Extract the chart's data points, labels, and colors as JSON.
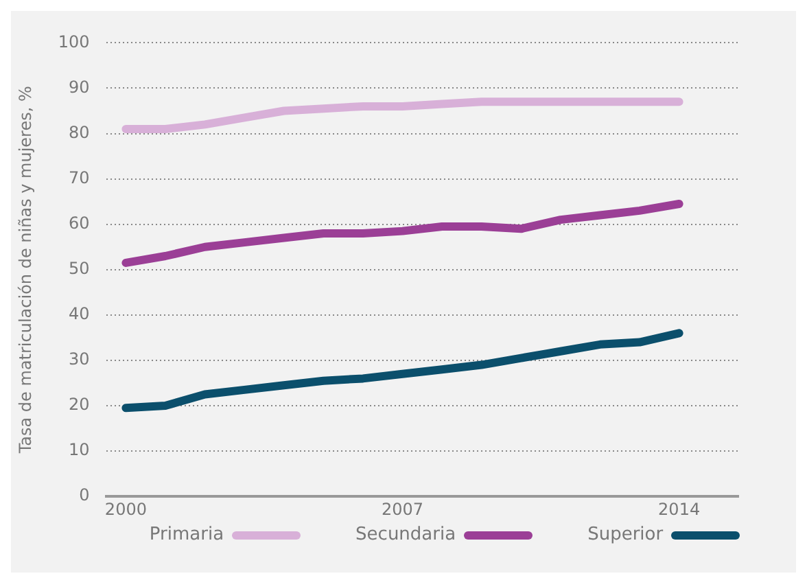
{
  "chart_data": {
    "type": "line",
    "ylabel": "Tasa de matriculación de niñas y mujeres, %",
    "x": [
      2000,
      2001,
      2002,
      2003,
      2004,
      2005,
      2006,
      2007,
      2008,
      2009,
      2010,
      2011,
      2012,
      2013,
      2014
    ],
    "series": [
      {
        "name": "Primaria",
        "color": "#d8b0d8",
        "values": [
          81,
          81,
          82,
          83.5,
          85,
          85.5,
          86,
          86,
          86.5,
          87,
          87,
          87,
          87,
          87,
          87
        ]
      },
      {
        "name": "Secundaria",
        "color": "#9b3f96",
        "values": [
          51.5,
          53,
          55,
          56,
          57,
          58,
          58,
          58.5,
          59.5,
          59.5,
          59,
          61,
          62,
          63,
          64.5
        ]
      },
      {
        "name": "Superior",
        "color": "#0b4f6c",
        "values": [
          19.5,
          20,
          22.5,
          23.5,
          24.5,
          25.5,
          26,
          27,
          28,
          29,
          30.5,
          32,
          33.5,
          34,
          36
        ]
      }
    ],
    "xlim": [
      1999.5,
      2015.5
    ],
    "xticks": [
      2000,
      2007,
      2014
    ],
    "ylim": [
      0,
      100
    ],
    "yticks": [
      0,
      10,
      20,
      30,
      40,
      50,
      60,
      70,
      80,
      90,
      100
    ],
    "grid": "y",
    "legend": "bottom",
    "marker": "none",
    "line_style": "solid"
  }
}
